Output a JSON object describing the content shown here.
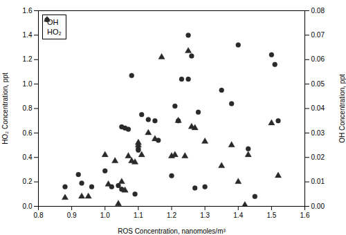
{
  "chart_data": {
    "type": "scatter",
    "xlabel": "ROS Concentration, nanomoles/m³",
    "ylabel": "HO₂ Concentration, ppt",
    "y2label": "OH Concentration, ppt",
    "xlim": [
      0.8,
      1.6
    ],
    "xticks": [
      0.8,
      0.9,
      {
        "value": 1,
        "label": "1.0"
      },
      1.1,
      1.2,
      1.3,
      1.4,
      1.5,
      1.6
    ],
    "ylim": [
      0,
      1.6
    ],
    "yticks": [
      {
        "value": 0,
        "label": "0.0"
      },
      0.2,
      0.4,
      0.6,
      0.8,
      {
        "value": 1,
        "label": "1.0"
      },
      1.2,
      1.4,
      1.6
    ],
    "y2lim": [
      0,
      0.08
    ],
    "y2ticks": [
      {
        "value": 0,
        "label": "0.00"
      },
      0.01,
      0.02,
      0.03,
      0.04,
      0.05,
      0.06,
      0.07,
      0.08
    ],
    "legend": "upper left",
    "series": [
      {
        "name": "OH",
        "axis": "y2",
        "marker": "circle",
        "color": "#2a2a2a",
        "x": [
          0.88,
          0.92,
          0.93,
          0.96,
          1.0,
          1.02,
          1.04,
          1.05,
          1.05,
          1.06,
          1.07,
          1.08,
          1.09,
          1.1,
          1.1,
          1.11,
          1.13,
          1.15,
          1.16,
          1.2,
          1.21,
          1.22,
          1.23,
          1.25,
          1.25,
          1.26,
          1.27,
          1.28,
          1.3,
          1.35,
          1.38,
          1.4,
          1.43,
          1.45,
          1.5,
          1.51,
          1.52
        ],
        "values": [
          0.008,
          0.013,
          0.0095,
          0.008,
          0.0145,
          0.008,
          0.0085,
          0.007,
          0.0325,
          0.032,
          0.0315,
          0.0535,
          0.005,
          0.0235,
          0.023,
          0.0375,
          0.0355,
          0.035,
          0.027,
          0.0125,
          0.041,
          0.035,
          0.052,
          0.07,
          0.052,
          0.0615,
          0.0075,
          0.0385,
          0.008,
          0.0475,
          0.042,
          0.066,
          0.0235,
          0.004,
          0.062,
          0.058,
          0.035
        ]
      },
      {
        "name": "HO₂",
        "axis": "y",
        "marker": "triangle",
        "color": "#2a2a2a",
        "x": [
          0.88,
          0.93,
          0.95,
          1.0,
          1.01,
          1.03,
          1.04,
          1.05,
          1.06,
          1.07,
          1.08,
          1.09,
          1.1,
          1.1,
          1.11,
          1.13,
          1.15,
          1.17,
          1.2,
          1.21,
          1.22,
          1.24,
          1.25,
          1.26,
          1.27,
          1.3,
          1.35,
          1.38,
          1.4,
          1.42,
          1.43,
          1.5,
          1.52
        ],
        "values": [
          0.07,
          0.08,
          0.08,
          0.42,
          0.18,
          0.37,
          0.02,
          0.2,
          0.13,
          0.41,
          0.37,
          0.36,
          0.5,
          0.52,
          0.42,
          0.6,
          0.55,
          1.22,
          0.41,
          0.42,
          0.7,
          0.41,
          1.27,
          0.65,
          0.64,
          0.53,
          0.33,
          0.5,
          0.2,
          0.01,
          0.42,
          0.68,
          0.25
        ]
      }
    ]
  }
}
